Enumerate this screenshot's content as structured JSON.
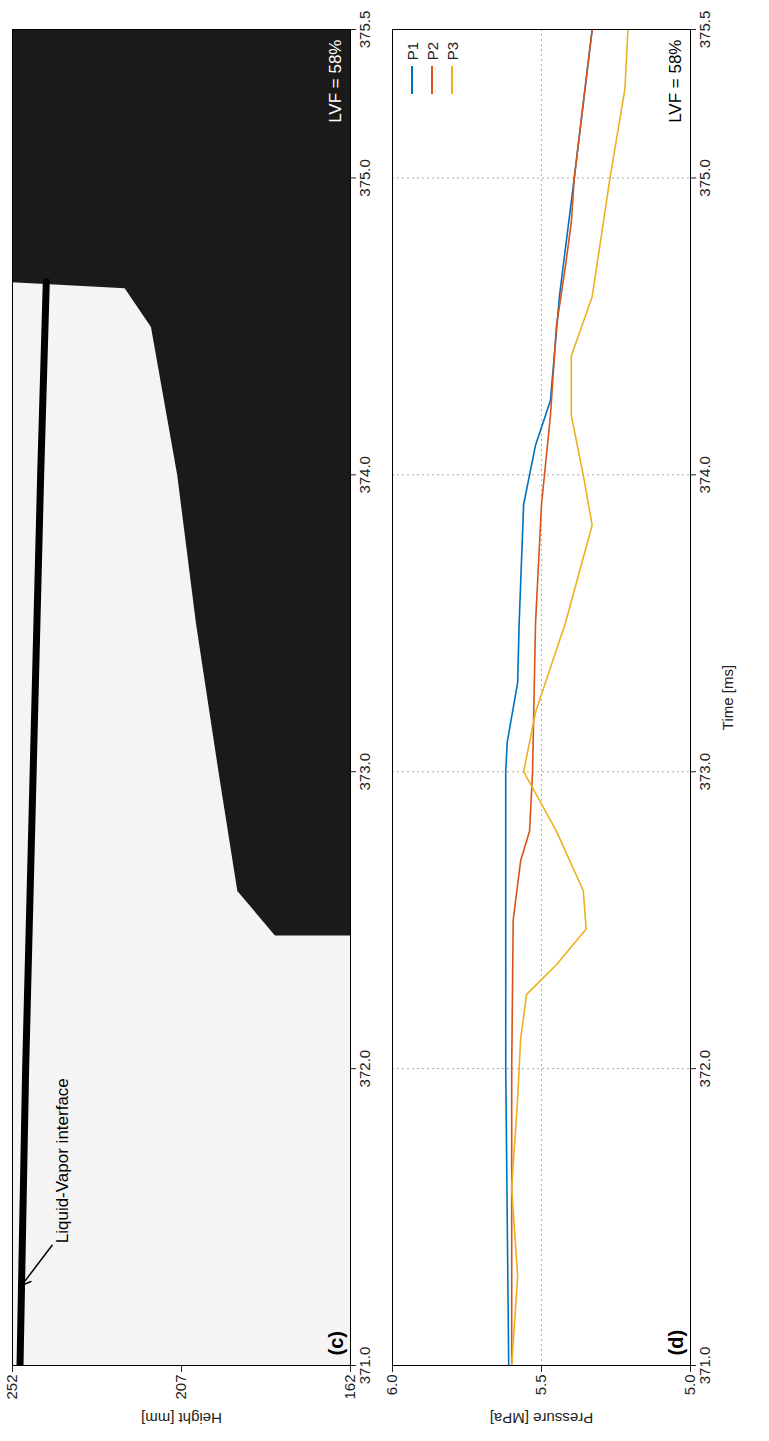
{
  "chart_data": [
    {
      "type": "line",
      "panel_label": "(c)",
      "annotation": "LVF = 58%",
      "ylabel": "Height [mm]",
      "xlim": [
        371,
        375.5
      ],
      "xticks": [
        371,
        372,
        373,
        374,
        375,
        375.5
      ],
      "ylim": [
        162,
        252
      ],
      "yticks": [
        162,
        207,
        252
      ],
      "grid": false,
      "series": [
        {
          "name": "Liquid-Vapor interface",
          "color": "#000000",
          "x": [
            371,
            372,
            373,
            374,
            374.65
          ],
          "values": [
            250,
            248.5,
            246.5,
            244.5,
            243
          ]
        }
      ],
      "dark_region": {
        "color": "#1a1a1a",
        "x": [
          372.45,
          372.6,
          373,
          373.5,
          374,
          374.5,
          374.63,
          374.65,
          375.5
        ],
        "upper": [
          182,
          192,
          197,
          203,
          208,
          215,
          222,
          252,
          252
        ]
      }
    },
    {
      "type": "line",
      "panel_label": "(d)",
      "annotation": "LVF = 58%",
      "xlabel": "Time [ms]",
      "ylabel": "Pressure [MPa]",
      "xlim": [
        371,
        375.5
      ],
      "xticks": [
        371,
        372,
        373,
        374,
        375,
        375.5
      ],
      "ylim": [
        5,
        6
      ],
      "yticks": [
        5,
        5.5,
        6
      ],
      "grid": true,
      "legend": "top-right",
      "series": [
        {
          "name": "P1",
          "color": "#0072bd",
          "x": [
            371,
            372,
            373,
            373.1,
            373.3,
            373.5,
            373.9,
            374.1,
            374.25,
            374.6,
            375,
            375.5
          ],
          "values": [
            5.61,
            5.62,
            5.62,
            5.615,
            5.58,
            5.575,
            5.56,
            5.52,
            5.47,
            5.44,
            5.39,
            5.33
          ]
        },
        {
          "name": "P2",
          "color": "#d95319",
          "x": [
            371,
            372,
            372.5,
            372.7,
            372.8,
            373,
            373.5,
            373.9,
            374.2,
            374.5,
            374.7,
            374.85,
            375,
            375.5
          ],
          "values": [
            5.6,
            5.6,
            5.595,
            5.57,
            5.54,
            5.53,
            5.52,
            5.5,
            5.47,
            5.45,
            5.42,
            5.4,
            5.39,
            5.33
          ]
        },
        {
          "name": "P3",
          "color": "#edb120",
          "x": [
            371,
            371.3,
            371.6,
            371.9,
            372.1,
            372.25,
            372.35,
            372.47,
            372.6,
            372.8,
            373,
            373.2,
            373.5,
            373.83,
            374,
            374.2,
            374.4,
            374.6,
            374.8,
            375,
            375.3,
            375.5
          ],
          "values": [
            5.6,
            5.58,
            5.6,
            5.58,
            5.57,
            5.55,
            5.45,
            5.35,
            5.36,
            5.45,
            5.56,
            5.52,
            5.42,
            5.33,
            5.36,
            5.4,
            5.4,
            5.33,
            5.3,
            5.27,
            5.22,
            5.21
          ]
        }
      ]
    }
  ]
}
